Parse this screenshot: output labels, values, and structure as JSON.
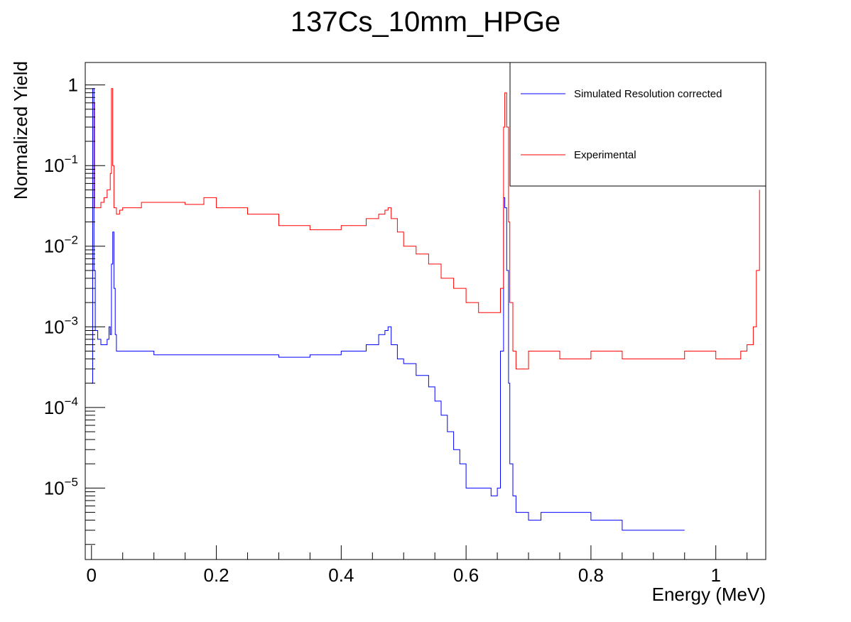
{
  "chart_data": {
    "type": "line",
    "title": "137Cs_10mm_HPGe",
    "xlabel": "Energy (MeV)",
    "ylabel": "Normalized Yield",
    "xlim": [
      -0.01,
      1.08
    ],
    "ylim": [
      1.3e-06,
      1.9
    ],
    "yscale": "log",
    "grid": false,
    "legend_position": "top-right",
    "x_ticks": [
      {
        "value": 0,
        "label": "0"
      },
      {
        "value": 0.2,
        "label": "0.2"
      },
      {
        "value": 0.4,
        "label": "0.4"
      },
      {
        "value": 0.6,
        "label": "0.6"
      },
      {
        "value": 0.8,
        "label": "0.8"
      },
      {
        "value": 1.0,
        "label": "1"
      }
    ],
    "y_ticks": [
      {
        "value": 1,
        "label": "1"
      },
      {
        "value": 0.1,
        "base": "10",
        "exp": "−1"
      },
      {
        "value": 0.01,
        "base": "10",
        "exp": "−2"
      },
      {
        "value": 0.001,
        "base": "10",
        "exp": "−3"
      },
      {
        "value": 0.0001,
        "base": "10",
        "exp": "−4"
      },
      {
        "value": 1e-05,
        "base": "10",
        "exp": "−5"
      }
    ],
    "series": [
      {
        "name": "Simulated Resolution corrected",
        "color": "#0000ff",
        "x": [
          0,
          0.002,
          0.004,
          0.006,
          0.01,
          0.015,
          0.02,
          0.025,
          0.028,
          0.03,
          0.032,
          0.034,
          0.036,
          0.038,
          0.04,
          0.045,
          0.05,
          0.1,
          0.15,
          0.2,
          0.25,
          0.3,
          0.35,
          0.4,
          0.44,
          0.46,
          0.47,
          0.475,
          0.48,
          0.49,
          0.5,
          0.52,
          0.54,
          0.55,
          0.56,
          0.57,
          0.58,
          0.59,
          0.6,
          0.62,
          0.64,
          0.65,
          0.655,
          0.66,
          0.662,
          0.665,
          0.668,
          0.67,
          0.675,
          0.68,
          0.7,
          0.72,
          0.75,
          0.8,
          0.85,
          0.9,
          0.95
        ],
        "y": [
          0.0002,
          0.9,
          0.005,
          0.0009,
          0.0007,
          0.0006,
          0.0006,
          0.0007,
          0.001,
          0.0008,
          0.006,
          0.015,
          0.003,
          0.0008,
          0.0005,
          0.0005,
          0.0005,
          0.00045,
          0.00045,
          0.00045,
          0.00045,
          0.00042,
          0.00045,
          0.0005,
          0.0006,
          0.0008,
          0.0009,
          0.001,
          0.0006,
          0.0004,
          0.00035,
          0.00025,
          0.00018,
          0.00012,
          8e-05,
          5e-05,
          3e-05,
          2e-05,
          1e-05,
          1e-05,
          8e-06,
          1e-05,
          0.0005,
          0.04,
          0.03,
          0.005,
          0.0002,
          2e-05,
          8e-06,
          5e-06,
          4e-06,
          5e-06,
          5e-06,
          4e-06,
          3e-06,
          3e-06,
          3e-06
        ]
      },
      {
        "name": "Experimental",
        "color": "#ff0000",
        "x": [
          0,
          0.005,
          0.01,
          0.015,
          0.02,
          0.025,
          0.03,
          0.032,
          0.034,
          0.036,
          0.04,
          0.045,
          0.05,
          0.08,
          0.1,
          0.15,
          0.18,
          0.2,
          0.25,
          0.3,
          0.35,
          0.4,
          0.44,
          0.46,
          0.47,
          0.475,
          0.48,
          0.49,
          0.5,
          0.52,
          0.54,
          0.56,
          0.58,
          0.6,
          0.62,
          0.64,
          0.65,
          0.655,
          0.66,
          0.662,
          0.665,
          0.668,
          0.67,
          0.675,
          0.68,
          0.7,
          0.75,
          0.8,
          0.85,
          0.9,
          0.95,
          1.0,
          1.04,
          1.05,
          1.06,
          1.065,
          1.07
        ],
        "y": [
          0.6,
          0.03,
          0.03,
          0.035,
          0.04,
          0.05,
          0.08,
          0.9,
          0.1,
          0.03,
          0.025,
          0.028,
          0.03,
          0.035,
          0.035,
          0.033,
          0.04,
          0.03,
          0.025,
          0.018,
          0.016,
          0.018,
          0.022,
          0.025,
          0.028,
          0.03,
          0.022,
          0.015,
          0.01,
          0.008,
          0.006,
          0.004,
          0.003,
          0.002,
          0.0015,
          0.0015,
          0.0015,
          0.003,
          0.3,
          0.8,
          0.3,
          0.02,
          0.002,
          0.0005,
          0.0003,
          0.0005,
          0.0004,
          0.0005,
          0.0004,
          0.0004,
          0.0005,
          0.0004,
          0.0005,
          0.0006,
          0.001,
          0.005,
          0.05
        ]
      }
    ]
  }
}
